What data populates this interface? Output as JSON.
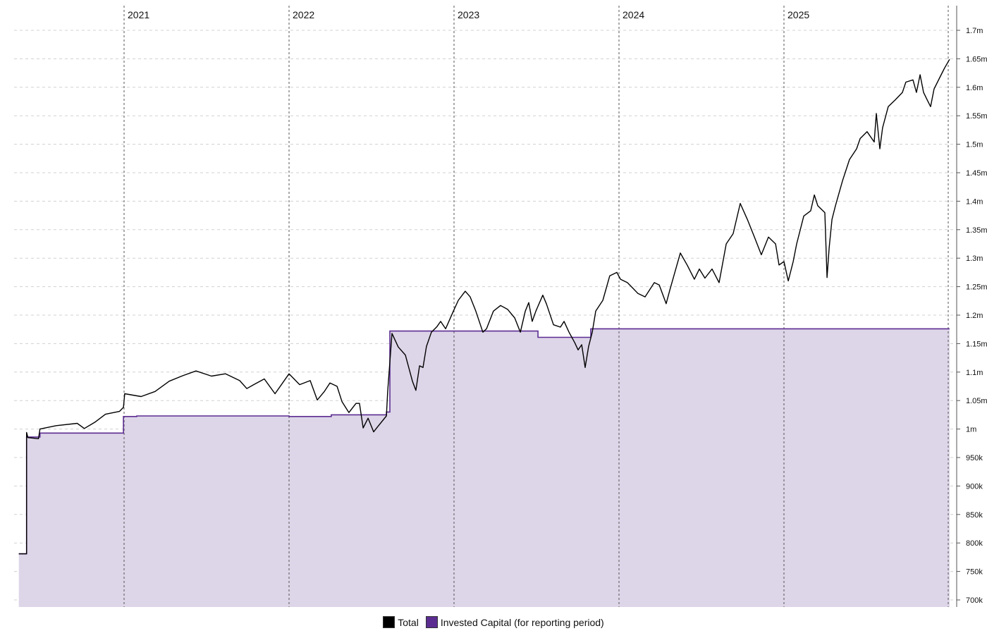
{
  "chart_data": {
    "type": "area",
    "title": "",
    "xlabel": "",
    "ylabel": "",
    "x_axis": {
      "type": "time",
      "labels": [
        "2021",
        "2022",
        "2023",
        "2024",
        "2025"
      ],
      "label_positions": [
        2021,
        2022,
        2023,
        2024,
        2025
      ],
      "range": [
        2020.36,
        2025.99
      ],
      "grid": true
    },
    "y_axis": {
      "position": "right",
      "ticks": [
        700000,
        750000,
        800000,
        850000,
        900000,
        950000,
        1000000,
        1050000,
        1100000,
        1150000,
        1200000,
        1250000,
        1300000,
        1350000,
        1400000,
        1450000,
        1500000,
        1550000,
        1600000,
        1650000,
        1700000
      ],
      "tick_labels": [
        "700k",
        "750k",
        "800k",
        "850k",
        "900k",
        "950k",
        "1m",
        "1.05m",
        "1.1m",
        "1.15m",
        "1.2m",
        "1.25m",
        "1.3m",
        "1.35m",
        "1.4m",
        "1.45m",
        "1.5m",
        "1.55m",
        "1.6m",
        "1.65m",
        "1.7m"
      ],
      "range": [
        690000,
        1720000
      ],
      "grid": true
    },
    "legend_position": "bottom",
    "series": [
      {
        "name": "Total",
        "color": "#000000",
        "kind": "line",
        "points": [
          [
            2020.362,
            781000
          ],
          [
            2020.409,
            781000
          ],
          [
            2020.409,
            994000
          ],
          [
            2020.417,
            985000
          ],
          [
            2020.481,
            983000
          ],
          [
            2020.49,
            1000000
          ],
          [
            2020.588,
            1006000
          ],
          [
            2020.716,
            1010000
          ],
          [
            2020.759,
            1001000
          ],
          [
            2020.823,
            1012000
          ],
          [
            2020.887,
            1026000
          ],
          [
            2020.972,
            1031000
          ],
          [
            2020.996,
            1038000
          ],
          [
            2021.004,
            1062000
          ],
          [
            2021.103,
            1057000
          ],
          [
            2021.188,
            1066000
          ],
          [
            2021.274,
            1084000
          ],
          [
            2021.359,
            1094000
          ],
          [
            2021.436,
            1102000
          ],
          [
            2021.53,
            1093000
          ],
          [
            2021.615,
            1097000
          ],
          [
            2021.701,
            1085000
          ],
          [
            2021.744,
            1071000
          ],
          [
            2021.786,
            1078000
          ],
          [
            2021.85,
            1088000
          ],
          [
            2021.915,
            1062000
          ],
          [
            2022.0,
            1097000
          ],
          [
            2022.064,
            1078000
          ],
          [
            2022.128,
            1085000
          ],
          [
            2022.171,
            1051000
          ],
          [
            2022.214,
            1066000
          ],
          [
            2022.248,
            1081000
          ],
          [
            2022.291,
            1075000
          ],
          [
            2022.321,
            1048000
          ],
          [
            2022.363,
            1029000
          ],
          [
            2022.406,
            1045000
          ],
          [
            2022.427,
            1045000
          ],
          [
            2022.449,
            1002000
          ],
          [
            2022.479,
            1019000
          ],
          [
            2022.513,
            995000
          ],
          [
            2022.534,
            1003000
          ],
          [
            2022.59,
            1023000
          ],
          [
            2022.598,
            1066000
          ],
          [
            2022.624,
            1168000
          ],
          [
            2022.662,
            1144000
          ],
          [
            2022.705,
            1130000
          ],
          [
            2022.748,
            1084000
          ],
          [
            2022.769,
            1068000
          ],
          [
            2022.791,
            1111000
          ],
          [
            2022.812,
            1108000
          ],
          [
            2022.833,
            1145000
          ],
          [
            2022.863,
            1170000
          ],
          [
            2022.897,
            1180000
          ],
          [
            2022.919,
            1189000
          ],
          [
            2022.949,
            1176000
          ],
          [
            2022.996,
            1207000
          ],
          [
            2023.026,
            1226000
          ],
          [
            2023.068,
            1242000
          ],
          [
            2023.098,
            1232000
          ],
          [
            2023.132,
            1207000
          ],
          [
            2023.175,
            1170000
          ],
          [
            2023.197,
            1176000
          ],
          [
            2023.239,
            1207000
          ],
          [
            2023.282,
            1217000
          ],
          [
            2023.325,
            1210000
          ],
          [
            2023.368,
            1195000
          ],
          [
            2023.402,
            1170000
          ],
          [
            2023.432,
            1207000
          ],
          [
            2023.453,
            1222000
          ],
          [
            2023.474,
            1189000
          ],
          [
            2023.496,
            1207000
          ],
          [
            2023.538,
            1235000
          ],
          [
            2023.56,
            1220000
          ],
          [
            2023.603,
            1183000
          ],
          [
            2023.645,
            1179000
          ],
          [
            2023.667,
            1189000
          ],
          [
            2023.697,
            1170000
          ],
          [
            2023.731,
            1152000
          ],
          [
            2023.752,
            1139000
          ],
          [
            2023.774,
            1148000
          ],
          [
            2023.795,
            1108000
          ],
          [
            2023.816,
            1145000
          ],
          [
            2023.838,
            1170000
          ],
          [
            2023.859,
            1207000
          ],
          [
            2023.902,
            1226000
          ],
          [
            2023.944,
            1269000
          ],
          [
            2023.987,
            1275000
          ],
          [
            2024.009,
            1263000
          ],
          [
            2024.051,
            1257000
          ],
          [
            2024.085,
            1247000
          ],
          [
            2024.115,
            1238000
          ],
          [
            2024.158,
            1232000
          ],
          [
            2024.214,
            1257000
          ],
          [
            2024.244,
            1253000
          ],
          [
            2024.286,
            1220000
          ],
          [
            2024.308,
            1244000
          ],
          [
            2024.372,
            1309000
          ],
          [
            2024.415,
            1287000
          ],
          [
            2024.457,
            1263000
          ],
          [
            2024.487,
            1281000
          ],
          [
            2024.521,
            1265000
          ],
          [
            2024.564,
            1281000
          ],
          [
            2024.607,
            1257000
          ],
          [
            2024.65,
            1325000
          ],
          [
            2024.692,
            1343000
          ],
          [
            2024.735,
            1396000
          ],
          [
            2024.778,
            1368000
          ],
          [
            2024.821,
            1337000
          ],
          [
            2024.863,
            1306000
          ],
          [
            2024.906,
            1337000
          ],
          [
            2024.949,
            1325000
          ],
          [
            2024.97,
            1288000
          ],
          [
            2025.0,
            1294000
          ],
          [
            2025.026,
            1260000
          ],
          [
            2025.056,
            1294000
          ],
          [
            2025.077,
            1325000
          ],
          [
            2025.12,
            1374000
          ],
          [
            2025.162,
            1383000
          ],
          [
            2025.184,
            1411000
          ],
          [
            2025.205,
            1392000
          ],
          [
            2025.248,
            1380000
          ],
          [
            2025.261,
            1266000
          ],
          [
            2025.274,
            1318000
          ],
          [
            2025.291,
            1368000
          ],
          [
            2025.312,
            1392000
          ],
          [
            2025.355,
            1436000
          ],
          [
            2025.397,
            1473000
          ],
          [
            2025.44,
            1492000
          ],
          [
            2025.462,
            1510000
          ],
          [
            2025.504,
            1522000
          ],
          [
            2025.547,
            1504000
          ],
          [
            2025.56,
            1554000
          ],
          [
            2025.581,
            1492000
          ],
          [
            2025.598,
            1529000
          ],
          [
            2025.632,
            1566000
          ],
          [
            2025.675,
            1578000
          ],
          [
            2025.718,
            1591000
          ],
          [
            2025.739,
            1609000
          ],
          [
            2025.782,
            1613000
          ],
          [
            2025.803,
            1591000
          ],
          [
            2025.825,
            1622000
          ],
          [
            2025.846,
            1591000
          ],
          [
            2025.868,
            1578000
          ],
          [
            2025.889,
            1566000
          ],
          [
            2025.91,
            1597000
          ],
          [
            2025.953,
            1622000
          ],
          [
            2025.974,
            1634000
          ],
          [
            2026.004,
            1649000
          ]
        ]
      },
      {
        "name": "Invested Capital (for reporting period)",
        "color": "#5b2d91",
        "fill": "#ddd5e8",
        "kind": "step-area",
        "points": [
          [
            2020.362,
            781000
          ],
          [
            2020.409,
            781000
          ],
          [
            2020.409,
            986000
          ],
          [
            2020.49,
            986000
          ],
          [
            2020.49,
            993000
          ],
          [
            2020.996,
            993000
          ],
          [
            2020.996,
            1022000
          ],
          [
            2021.077,
            1022000
          ],
          [
            2021.077,
            1023000
          ],
          [
            2022.0,
            1023000
          ],
          [
            2022.0,
            1022000
          ],
          [
            2022.256,
            1022000
          ],
          [
            2022.256,
            1025000
          ],
          [
            2022.59,
            1025000
          ],
          [
            2022.59,
            1030000
          ],
          [
            2022.611,
            1030000
          ],
          [
            2022.611,
            1172000
          ],
          [
            2023.509,
            1172000
          ],
          [
            2023.509,
            1161000
          ],
          [
            2023.829,
            1161000
          ],
          [
            2023.829,
            1176000
          ],
          [
            2026.004,
            1176000
          ]
        ]
      }
    ]
  },
  "legend": {
    "items": [
      {
        "label": "Total",
        "color": "#000000"
      },
      {
        "label": "Invested Capital (for reporting period)",
        "color": "#5b2d91"
      }
    ]
  },
  "colors": {
    "grid": "#d0d0d0",
    "year_line": "#555555",
    "axis": "#555555",
    "fill": "#ddd5e8"
  }
}
